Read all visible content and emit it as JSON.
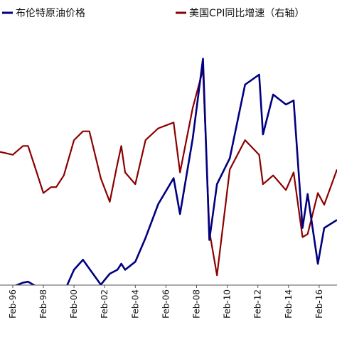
{
  "chart_data": {
    "type": "line",
    "title": "",
    "xlabel": "",
    "ylabel": "",
    "x_tick_labels": [
      "Feb-96",
      "Feb-98",
      "Feb-00",
      "Feb-02",
      "Feb-04",
      "Feb-06",
      "Feb-08",
      "Feb-10",
      "Feb-12",
      "Feb-14",
      "Feb-16"
    ],
    "x_range": [
      "1995-04",
      "2017-04"
    ],
    "legend_position": "top",
    "grid": false,
    "series": [
      {
        "name": "布伦特原油价格",
        "axis": "left",
        "color": "#000080",
        "points": [
          [
            "1995-04",
            18.5
          ],
          [
            "1996-02",
            18.5
          ],
          [
            "1996-10",
            20.5
          ],
          [
            "1997-02",
            21.0
          ],
          [
            "1997-08",
            18.8
          ],
          [
            "1998-02",
            14.5
          ],
          [
            "1998-08",
            12.5
          ],
          [
            "1998-12",
            10.2
          ],
          [
            "1999-06",
            15.5
          ],
          [
            "2000-02",
            27.0
          ],
          [
            "2000-09",
            32.0
          ],
          [
            "2001-02",
            27.5
          ],
          [
            "2001-11",
            19.5
          ],
          [
            "2002-06",
            25.0
          ],
          [
            "2002-12",
            27.0
          ],
          [
            "2003-03",
            30.0
          ],
          [
            "2003-06",
            27.0
          ],
          [
            "2004-02",
            31.0
          ],
          [
            "2004-10",
            43.0
          ],
          [
            "2005-08",
            60.0
          ],
          [
            "2006-08",
            73.0
          ],
          [
            "2007-01",
            55.0
          ],
          [
            "2007-11",
            93.0
          ],
          [
            "2008-07",
            133.0
          ],
          [
            "2008-12",
            42.0
          ],
          [
            "2009-06",
            70.0
          ],
          [
            "2010-04",
            83.0
          ],
          [
            "2011-04",
            120.0
          ],
          [
            "2012-03",
            125.0
          ],
          [
            "2012-06",
            95.0
          ],
          [
            "2013-02",
            115.0
          ],
          [
            "2013-12",
            110.0
          ],
          [
            "2014-06",
            112.0
          ],
          [
            "2015-01",
            48.0
          ],
          [
            "2015-05",
            65.0
          ],
          [
            "2016-01",
            30.0
          ],
          [
            "2016-06",
            48.0
          ],
          [
            "2017-04",
            52.0
          ]
        ]
      },
      {
        "name": "美国CPI同比增速（右轴）",
        "axis": "right",
        "color": "#8B0000",
        "points": [
          [
            "1995-04",
            2.8
          ],
          [
            "1996-02",
            2.7
          ],
          [
            "1996-10",
            3.0
          ],
          [
            "1997-02",
            3.0
          ],
          [
            "1997-08",
            2.2
          ],
          [
            "1998-02",
            1.4
          ],
          [
            "1998-08",
            1.6
          ],
          [
            "1998-12",
            1.6
          ],
          [
            "1999-06",
            2.0
          ],
          [
            "2000-02",
            3.2
          ],
          [
            "2000-09",
            3.5
          ],
          [
            "2001-02",
            3.5
          ],
          [
            "2001-11",
            1.9
          ],
          [
            "2002-06",
            1.1
          ],
          [
            "2002-12",
            2.4
          ],
          [
            "2003-03",
            3.0
          ],
          [
            "2003-06",
            2.1
          ],
          [
            "2004-02",
            1.7
          ],
          [
            "2004-10",
            3.2
          ],
          [
            "2005-08",
            3.6
          ],
          [
            "2006-08",
            3.8
          ],
          [
            "2007-01",
            2.1
          ],
          [
            "2007-11",
            4.3
          ],
          [
            "2008-07",
            5.6
          ],
          [
            "2008-12",
            0.1
          ],
          [
            "2009-06",
            -1.4
          ],
          [
            "2010-04",
            2.2
          ],
          [
            "2011-04",
            3.2
          ],
          [
            "2012-03",
            2.7
          ],
          [
            "2012-06",
            1.7
          ],
          [
            "2013-02",
            2.0
          ],
          [
            "2013-12",
            1.5
          ],
          [
            "2014-06",
            2.1
          ],
          [
            "2015-01",
            -0.1
          ],
          [
            "2015-05",
            0.0
          ],
          [
            "2016-01",
            1.4
          ],
          [
            "2016-06",
            1.0
          ],
          [
            "2017-04",
            2.2
          ]
        ]
      }
    ]
  }
}
